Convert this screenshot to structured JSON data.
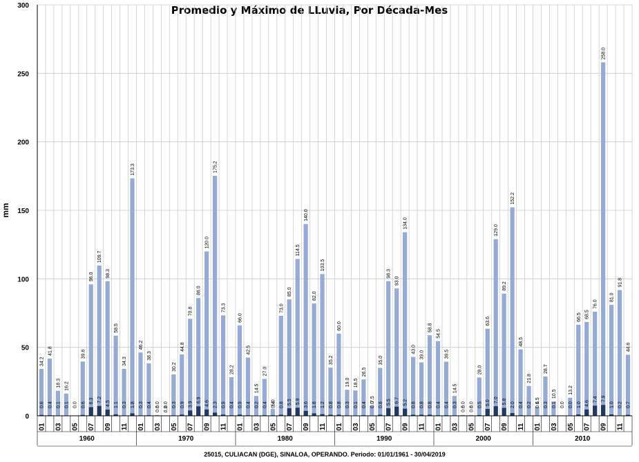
{
  "chart_data": {
    "type": "bar",
    "title": "Promedio y Máximo de LLuvia, Por Década-Mes",
    "ylabel": "mm",
    "xlabel": "",
    "ylim": [
      0,
      300
    ],
    "yticks": [
      0,
      50,
      100,
      150,
      200,
      250,
      300
    ],
    "grid": true,
    "month_ticks": [
      "01",
      "03",
      "05",
      "07",
      "09",
      "11"
    ],
    "months": [
      "01",
      "02",
      "03",
      "04",
      "05",
      "06",
      "07",
      "08",
      "09",
      "10",
      "11",
      "12"
    ],
    "decades": [
      "1960",
      "1970",
      "1980",
      "1990",
      "2000",
      "2010"
    ],
    "series": [
      {
        "values": [
          [
            34.2,
            41.8,
            18.3,
            16.2,
            0,
            39.6,
            96.0,
            109.7,
            98.3,
            58.5,
            34.3,
            173.3
          ],
          [
            46.2,
            38.3,
            0.6,
            0.3,
            30.2,
            44.8,
            70.8,
            86.0,
            120.0,
            175.2,
            73.3,
            28.2
          ],
          [
            66.0,
            42.5,
            14.5,
            27.0,
            5.0,
            73.0,
            85.0,
            114.5,
            140.0,
            82.0,
            103.5,
            35.2
          ],
          [
            60.0,
            19.0,
            18.5,
            26.5,
            7.5,
            35.0,
            98.3,
            93.0,
            134.0,
            43.0,
            39.0,
            58.8
          ],
          [
            54.5,
            39.5,
            14.5,
            0.6,
            0.6,
            28.0,
            63.6,
            129.0,
            89.2,
            152.2,
            48.5,
            21.8
          ],
          [
            6.5,
            28.7,
            10.5,
            0,
            13.2,
            66.5,
            68.5,
            76.0,
            258.0,
            81.0,
            91.8,
            44.6
          ]
        ]
      },
      {
        "values": [
          [
            0.6,
            0.4,
            0.1,
            0.1,
            0.0,
            0.6,
            6.3,
            7.2,
            4.5,
            1.1,
            0.3,
            1.8
          ],
          [
            0.3,
            0.4,
            0.0,
            0.0,
            0.3,
            0.9,
            3.9,
            6.9,
            4.6,
            2.3,
            0.9,
            0.4
          ],
          [
            0.9,
            0.4,
            0.2,
            0.4,
            0.4,
            0.8,
            5.5,
            5.9,
            3.6,
            1.8,
            1.2,
            0.8
          ],
          [
            0.8,
            0.3,
            0.1,
            0.4,
            0.0,
            0.8,
            5.5,
            6.7,
            5.2,
            0.8,
            0.8,
            0.8
          ],
          [
            0.4,
            0.4,
            0.3,
            0.0,
            0.0,
            0.5,
            5.0,
            7.0,
            5.8,
            2.0,
            0.4,
            0.2
          ],
          [
            0.1,
            0.3,
            0.1,
            0.0,
            0.0,
            1.0,
            4.6,
            7.4,
            7.9,
            1.0,
            0.2,
            0.7
          ]
        ]
      }
    ],
    "value_label_text": {
      "max": [
        [
          "34.2",
          "41.8",
          "18.3",
          "16.2",
          "",
          "39.6",
          "96.0",
          "109.7",
          "98.3",
          "58.5",
          "34.3",
          "173.3"
        ],
        [
          "46.2",
          "38.3",
          "0.6",
          "0.3",
          "30.2",
          "44.8",
          "70.8",
          "86.0",
          "120.0",
          "175.2",
          "73.3",
          "28.2"
        ],
        [
          "66.0",
          "42.5",
          "14.5",
          "27.0",
          "5.0",
          "73.0",
          "85.0",
          "114.5",
          "140.0",
          "82.0",
          "103.5",
          "35.2"
        ],
        [
          "60.0",
          "19.0",
          "18.5",
          "26.5",
          "7.5",
          "35.0",
          "98.3",
          "93.0",
          "134.0",
          "43.0",
          "39.0",
          "58.8"
        ],
        [
          "54.5",
          "39.5",
          "14.5",
          "0.6",
          "0.6",
          "28.0",
          "63.6",
          "129.0",
          "89.2",
          "152.2",
          "48.5",
          "21.8"
        ],
        [
          "6.5",
          "28.7",
          "10.5",
          "",
          "13.2",
          "66.5",
          "68.5",
          "76.0",
          "258.0",
          "81.0",
          "91.8",
          "44.6"
        ]
      ],
      "mean": [
        [
          "0.6",
          "0.4",
          "0.1",
          "0.1",
          "0.0",
          "0.6",
          "6.3",
          "7.2",
          "4.5",
          "1.1",
          "0.3",
          "1.8"
        ],
        [
          "0.3",
          "0.4",
          "0.0",
          "0.0",
          "0.3",
          "0.9",
          "3.9",
          "6.9",
          "4.6",
          "2.3",
          "0.9",
          "0.4"
        ],
        [
          "0.9",
          "0.4",
          "0.2",
          "0.4",
          "0.4",
          "0.8",
          "5.5",
          "5.9",
          "3.6",
          "1.8",
          "1.2",
          "0.8"
        ],
        [
          "0.8",
          "0.3",
          "0.1",
          "0.4",
          "0.0",
          "0.8",
          "5.5",
          "6.7",
          "5.2",
          "0.8",
          "0.8",
          "0.8"
        ],
        [
          "0.4",
          "0.4",
          "0.3",
          "0.0",
          "0.0",
          "0.5",
          "5.0",
          "7.0",
          "5.8",
          "2.0",
          "0.4",
          "0.2"
        ],
        [
          "0.1",
          "0.3",
          "0.1",
          "0.0",
          "0.0",
          "1.0",
          "4.6",
          "7.4",
          "7.9",
          "1.0",
          "0.2",
          "0.7"
        ]
      ]
    },
    "footer": "25015, CULIACAN (DGE), SINALOA, OPERANDO. Periodo: 01/01/1961 - 30/04/2019",
    "colors": {
      "max": "#95abd6",
      "mean": "#1f3864",
      "grid": "#cccccc",
      "axis": "#000000"
    }
  }
}
